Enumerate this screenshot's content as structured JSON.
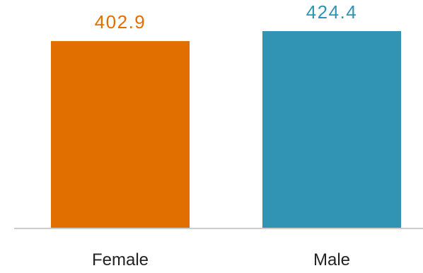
{
  "chart_data": {
    "type": "bar",
    "categories": [
      "Female",
      "Male"
    ],
    "values": [
      402.9,
      424.4
    ],
    "data_labels": [
      "402.9",
      "424.4"
    ],
    "colors": [
      "#e06f00",
      "#3194b4"
    ],
    "baseline_color": "#cccccc",
    "ylim": [
      0,
      424.4
    ],
    "grid": false,
    "legend": "none"
  }
}
